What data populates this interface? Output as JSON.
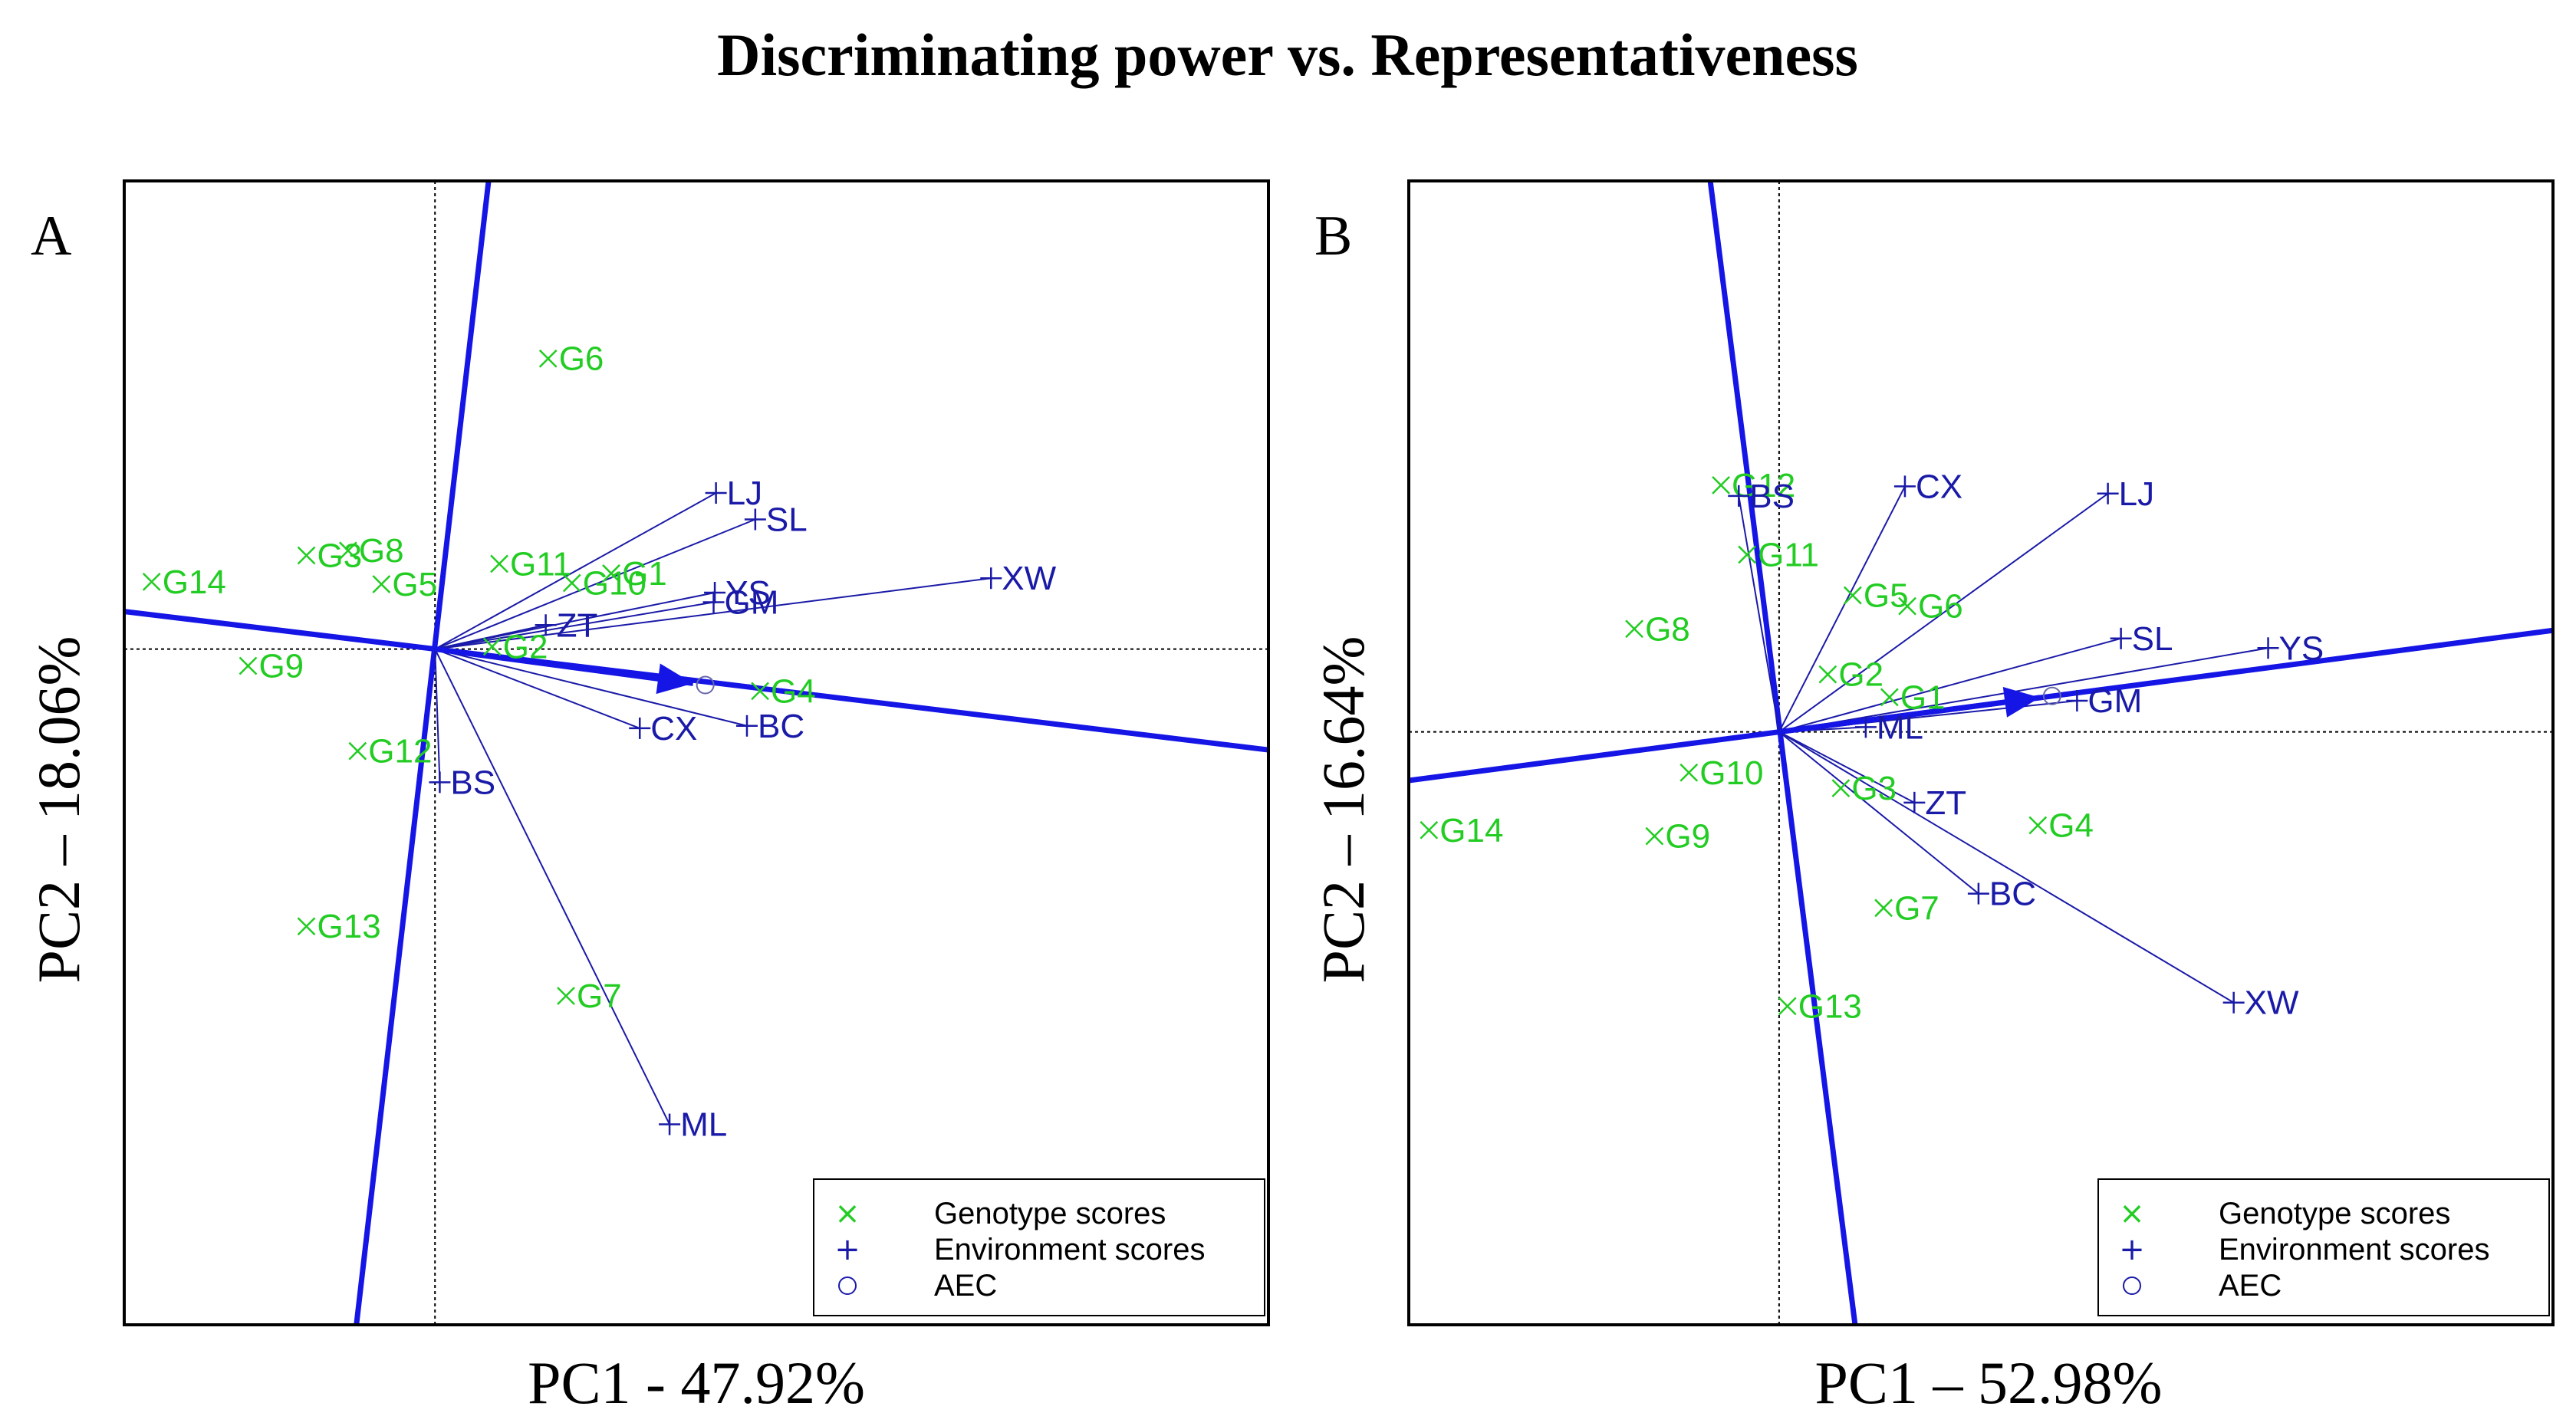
{
  "colors": {
    "genotype": "#22cc22",
    "environment": "#1a1aa8",
    "axis_line": "#1515e6",
    "frame": "#000000"
  },
  "chart_data": [
    {
      "type": "scatter",
      "panel": "A",
      "title": "Discriminating power vs. Representativeness",
      "xlabel": "PC1 - 47.92%",
      "ylabel": "PC2 – 18.06%",
      "xlim": [
        -2.61,
        7.0
      ],
      "ylim": [
        -5.63,
        3.9
      ],
      "legend": {
        "position": "bottom-right",
        "entries": [
          "Genotype scores",
          "Environment scores",
          "AEC"
        ]
      },
      "aec": {
        "x": 2.27,
        "y": -0.3
      },
      "aec_abscissa_slope": -0.12,
      "aec_ordinate_ends": [
        [
          -0.66,
          -5.63
        ],
        [
          0.45,
          3.9
        ]
      ],
      "genotypes": [
        {
          "name": "G6",
          "x": 0.95,
          "y": 2.42
        },
        {
          "name": "G14",
          "x": -2.38,
          "y": 0.56
        },
        {
          "name": "G3",
          "x": -1.08,
          "y": 0.78
        },
        {
          "name": "G8",
          "x": -0.73,
          "y": 0.82
        },
        {
          "name": "G5",
          "x": -0.45,
          "y": 0.54
        },
        {
          "name": "G11",
          "x": 0.54,
          "y": 0.71
        },
        {
          "name": "G1",
          "x": 1.48,
          "y": 0.63
        },
        {
          "name": "G10",
          "x": 1.15,
          "y": 0.55
        },
        {
          "name": "G2",
          "x": 0.48,
          "y": 0.02
        },
        {
          "name": "G9",
          "x": -1.57,
          "y": -0.14
        },
        {
          "name": "G4",
          "x": 2.73,
          "y": -0.35
        },
        {
          "name": "G12",
          "x": -0.65,
          "y": -0.85
        },
        {
          "name": "G13",
          "x": -1.08,
          "y": -2.31
        },
        {
          "name": "G7",
          "x": 1.1,
          "y": -2.89
        }
      ],
      "environments": [
        {
          "name": "LJ",
          "x": 2.36,
          "y": 1.3
        },
        {
          "name": "SL",
          "x": 2.69,
          "y": 1.08
        },
        {
          "name": "XW",
          "x": 4.67,
          "y": 0.59
        },
        {
          "name": "YS",
          "x": 2.35,
          "y": 0.47
        },
        {
          "name": "GM",
          "x": 2.34,
          "y": 0.39
        },
        {
          "name": "ZT",
          "x": 0.93,
          "y": 0.2
        },
        {
          "name": "CX",
          "x": 1.72,
          "y": -0.66
        },
        {
          "name": "BC",
          "x": 2.62,
          "y": -0.64
        },
        {
          "name": "BS",
          "x": 0.04,
          "y": -1.11
        },
        {
          "name": "ML",
          "x": 1.97,
          "y": -3.96
        }
      ]
    },
    {
      "type": "scatter",
      "panel": "B",
      "xlabel": "PC1 – 52.98%",
      "ylabel": "PC2 – 16.64%",
      "xlim": [
        -3.12,
        6.52
      ],
      "ylim": [
        -4.95,
        4.6
      ],
      "legend": {
        "position": "bottom-right",
        "entries": [
          "Genotype scores",
          "Environment scores",
          "AEC"
        ]
      },
      "aec": {
        "x": 2.3,
        "y": 0.3
      },
      "aec_abscissa_slope": 0.13,
      "aec_ordinate_ends": [
        [
          0.64,
          -4.95
        ],
        [
          -0.58,
          4.6
        ]
      ],
      "genotypes": [
        {
          "name": "G12",
          "x": -0.49,
          "y": 2.06
        },
        {
          "name": "G11",
          "x": -0.27,
          "y": 1.48
        },
        {
          "name": "G5",
          "x": 0.62,
          "y": 1.14
        },
        {
          "name": "G6",
          "x": 1.08,
          "y": 1.05
        },
        {
          "name": "G8",
          "x": -1.22,
          "y": 0.86
        },
        {
          "name": "G2",
          "x": 0.41,
          "y": 0.48
        },
        {
          "name": "G1",
          "x": 0.93,
          "y": 0.29
        },
        {
          "name": "G10",
          "x": -0.76,
          "y": -0.34
        },
        {
          "name": "G3",
          "x": 0.52,
          "y": -0.47
        },
        {
          "name": "G14",
          "x": -2.95,
          "y": -0.82
        },
        {
          "name": "G9",
          "x": -1.05,
          "y": -0.87
        },
        {
          "name": "G4",
          "x": 2.18,
          "y": -0.78
        },
        {
          "name": "G7",
          "x": 0.88,
          "y": -1.47
        },
        {
          "name": "G13",
          "x": 0.07,
          "y": -2.29
        }
      ],
      "environments": [
        {
          "name": "BS",
          "x": -0.34,
          "y": 1.97
        },
        {
          "name": "CX",
          "x": 1.06,
          "y": 2.05
        },
        {
          "name": "LJ",
          "x": 2.77,
          "y": 1.99
        },
        {
          "name": "SL",
          "x": 2.88,
          "y": 0.78
        },
        {
          "name": "YS",
          "x": 4.12,
          "y": 0.7
        },
        {
          "name": "GM",
          "x": 2.51,
          "y": 0.26
        },
        {
          "name": "ML",
          "x": 0.73,
          "y": 0.04
        },
        {
          "name": "ZT",
          "x": 1.14,
          "y": -0.59
        },
        {
          "name": "BC",
          "x": 1.68,
          "y": -1.35
        },
        {
          "name": "XW",
          "x": 3.83,
          "y": -2.26
        }
      ]
    }
  ]
}
